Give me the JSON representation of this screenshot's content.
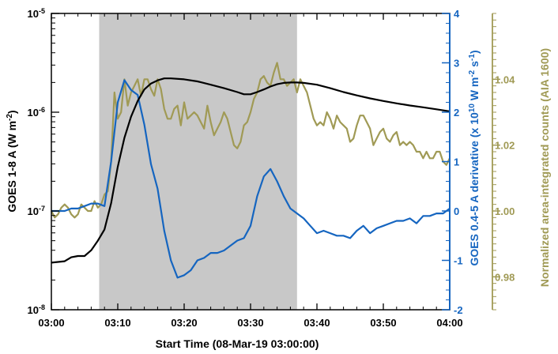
{
  "chart_data": {
    "type": "line",
    "xlabel": "Start Time (08-Mar-19 03:00:00)",
    "x_ticks": [
      "03:00",
      "03:10",
      "03:20",
      "03:30",
      "03:40",
      "03:50",
      "04:00"
    ],
    "x_range_minutes": [
      0,
      60
    ],
    "shaded_interval_minutes": [
      7.2,
      37.0
    ],
    "left_axis": {
      "label_main": "GOES 1-8 A (W m",
      "label_sup": "-2",
      "label_end": ")",
      "scale": "log",
      "range": [
        1e-08,
        1e-05
      ],
      "ticks": [
        {
          "value": 1e-08,
          "base": "10",
          "exp": "-8"
        },
        {
          "value": 1e-07,
          "base": "10",
          "exp": "-7"
        },
        {
          "value": 1e-06,
          "base": "10",
          "exp": "-6"
        },
        {
          "value": 1e-05,
          "base": "10",
          "exp": "-5"
        }
      ],
      "color": "#000000"
    },
    "right_axis_1": {
      "label_parts": [
        "GOES 0.4-5 A derivative (x 10",
        "10",
        " W m",
        "-2",
        " s",
        "-1",
        ")"
      ],
      "range": [
        -2,
        4
      ],
      "ticks": [
        "-2",
        "-1",
        "0",
        "1",
        "2",
        "3",
        "4"
      ],
      "color": "#1565c0"
    },
    "right_axis_2": {
      "label": "Normalized area-integrated counts (AIA 1600)",
      "range": [
        0.97,
        1.06
      ],
      "ticks": [
        "0.98",
        "1.00",
        "1.02",
        "1.04"
      ],
      "color": "#a09a55"
    },
    "series": [
      {
        "axis": "left",
        "color": "#000000",
        "x": [
          0,
          2,
          3,
          4,
          5,
          6,
          7,
          8,
          9,
          10,
          11,
          12,
          13,
          14,
          15,
          16,
          17,
          18,
          20,
          22,
          24,
          26,
          28,
          29,
          30,
          31,
          32,
          33,
          34,
          35,
          36,
          37,
          38,
          40,
          42,
          44,
          46,
          48,
          50,
          52,
          54,
          56,
          58,
          60
        ],
        "y": [
          3e-08,
          3.1e-08,
          3.4e-08,
          3.5e-08,
          3.5e-08,
          4e-08,
          5e-08,
          6.5e-08,
          1.2e-07,
          2.8e-07,
          5.5e-07,
          9e-07,
          1.3e-06,
          1.7e-06,
          1.95e-06,
          2.1e-06,
          2.2e-06,
          2.2e-06,
          2.15e-06,
          2.05e-06,
          1.9e-06,
          1.75e-06,
          1.6e-06,
          1.52e-06,
          1.52e-06,
          1.6e-06,
          1.7e-06,
          1.82e-06,
          1.92e-06,
          1.98e-06,
          2e-06,
          2e-06,
          1.98e-06,
          1.9e-06,
          1.75e-06,
          1.6e-06,
          1.48e-06,
          1.38e-06,
          1.3e-06,
          1.23e-06,
          1.17e-06,
          1.12e-06,
          1.07e-06,
          1.02e-06
        ]
      },
      {
        "axis": "right1",
        "color": "#1565c0",
        "x": [
          0,
          1,
          2,
          3,
          4,
          5,
          6,
          7,
          8,
          9,
          10,
          11,
          12,
          13,
          14,
          15,
          16,
          17,
          18,
          19,
          20,
          21,
          22,
          23,
          24,
          25,
          26,
          27,
          28,
          29,
          30,
          31,
          32,
          33,
          34,
          35,
          36,
          37,
          38,
          39,
          40,
          41,
          42,
          43,
          44,
          45,
          46,
          47,
          48,
          49,
          50,
          51,
          52,
          53,
          54,
          55,
          56,
          57,
          58,
          59,
          60
        ],
        "y": [
          0.0,
          0.0,
          0.0,
          0.05,
          0.05,
          0.1,
          0.15,
          0.15,
          0.1,
          1.0,
          2.2,
          2.65,
          2.45,
          2.35,
          1.75,
          0.95,
          0.45,
          -0.4,
          -1.0,
          -1.35,
          -1.3,
          -1.2,
          -1.0,
          -0.95,
          -0.85,
          -0.85,
          -0.8,
          -0.7,
          -0.6,
          -0.55,
          -0.3,
          0.3,
          0.7,
          0.85,
          0.6,
          0.3,
          0.05,
          -0.05,
          -0.15,
          -0.3,
          -0.45,
          -0.4,
          -0.45,
          -0.5,
          -0.5,
          -0.55,
          -0.4,
          -0.3,
          -0.45,
          -0.35,
          -0.3,
          -0.25,
          -0.2,
          -0.2,
          -0.15,
          -0.25,
          -0.1,
          -0.1,
          -0.05,
          -0.05,
          0.05
        ]
      },
      {
        "axis": "right2",
        "color": "#a09a55",
        "x": [
          0,
          0.5,
          1,
          1.5,
          2,
          2.5,
          3,
          3.5,
          4,
          4.5,
          5,
          5.5,
          6,
          6.5,
          7,
          7.5,
          8,
          8.5,
          9,
          9.5,
          10,
          10.5,
          11,
          11.5,
          12,
          12.5,
          13,
          13.5,
          14,
          14.5,
          15,
          15.5,
          16,
          16.5,
          17,
          17.5,
          18,
          18.5,
          19,
          19.5,
          20,
          20.5,
          21,
          21.5,
          22,
          22.5,
          23,
          23.5,
          24,
          24.5,
          25,
          25.5,
          26,
          26.5,
          27,
          27.5,
          28,
          28.5,
          29,
          29.5,
          30,
          30.5,
          31,
          31.5,
          32,
          32.5,
          33,
          33.5,
          34,
          34.5,
          35,
          35.5,
          36,
          36.5,
          37,
          37.5,
          38,
          38.5,
          39,
          39.5,
          40,
          40.5,
          41,
          41.5,
          42,
          42.5,
          43,
          43.5,
          44,
          44.5,
          45,
          45.5,
          46,
          46.5,
          47,
          47.5,
          48,
          48.5,
          49,
          49.5,
          50,
          50.5,
          51,
          51.5,
          52,
          52.5,
          53,
          53.5,
          54,
          54.5,
          55,
          55.5,
          56,
          56.5,
          57,
          57.5,
          58,
          58.5,
          59,
          59.5,
          60
        ],
        "y": [
          1.0,
          0.998,
          0.999,
          1.001,
          1.002,
          1.001,
          0.999,
          0.998,
          0.999,
          1.002,
          1.001,
          1.0,
          1.0,
          1.003,
          1.001,
          1.002,
          1.005,
          1.006,
          1.015,
          1.036,
          1.028,
          1.03,
          1.04,
          1.032,
          1.036,
          1.038,
          1.04,
          1.035,
          1.04,
          1.04,
          1.037,
          1.035,
          1.04,
          1.037,
          1.031,
          1.028,
          1.028,
          1.031,
          1.032,
          1.026,
          1.033,
          1.028,
          1.029,
          1.03,
          1.029,
          1.027,
          1.025,
          1.032,
          1.027,
          1.023,
          1.025,
          1.027,
          1.03,
          1.028,
          1.024,
          1.02,
          1.019,
          1.021,
          1.026,
          1.027,
          1.03,
          1.034,
          1.036,
          1.04,
          1.041,
          1.039,
          1.038,
          1.042,
          1.045,
          1.04,
          1.04,
          1.038,
          1.039,
          1.04,
          1.036,
          1.04,
          1.038,
          1.036,
          1.032,
          1.028,
          1.026,
          1.027,
          1.026,
          1.03,
          1.028,
          1.025,
          1.029,
          1.027,
          1.026,
          1.025,
          1.021,
          1.022,
          1.026,
          1.029,
          1.029,
          1.027,
          1.025,
          1.02,
          1.022,
          1.024,
          1.025,
          1.022,
          1.021,
          1.023,
          1.024,
          1.02,
          1.021,
          1.02,
          1.021,
          1.02,
          1.018,
          1.018,
          1.016,
          1.018,
          1.016,
          1.016,
          1.018,
          1.018,
          1.015,
          1.014,
          1.016
        ]
      }
    ]
  }
}
